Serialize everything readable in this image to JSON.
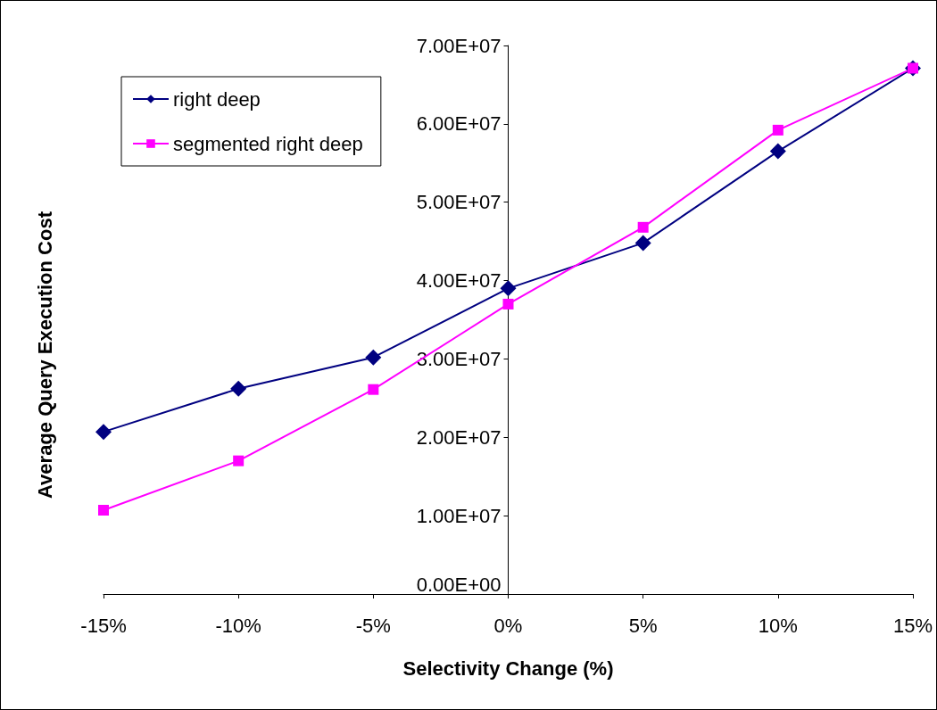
{
  "chart_data": {
    "type": "line",
    "xlabel": "Selectivity Change (%)",
    "ylabel": "Average Query Execution Cost",
    "x": [
      -15,
      -10,
      -5,
      0,
      5,
      10,
      15
    ],
    "series": [
      {
        "name": "right deep",
        "color": "#000080",
        "marker": "diamond",
        "values": [
          20700000,
          26200000,
          30200000,
          39000000,
          44800000,
          56500000,
          67100000
        ]
      },
      {
        "name": "segmented right deep",
        "color": "#ff00ff",
        "marker": "square",
        "values": [
          10700000,
          17000000,
          26100000,
          37000000,
          46800000,
          59200000,
          67100000
        ]
      }
    ],
    "xlim": [
      -15,
      15
    ],
    "xticks": [
      {
        "value": -15,
        "label": "-15%"
      },
      {
        "value": -10,
        "label": "-10%"
      },
      {
        "value": -5,
        "label": "-5%"
      },
      {
        "value": 0,
        "label": "0%"
      },
      {
        "value": 5,
        "label": "5%"
      },
      {
        "value": 10,
        "label": "10%"
      },
      {
        "value": 15,
        "label": "15%"
      }
    ],
    "ylim": [
      0,
      70000000
    ],
    "yticks": [
      {
        "value": 0,
        "label": "0.00E+00"
      },
      {
        "value": 10000000,
        "label": "1.00E+07"
      },
      {
        "value": 20000000,
        "label": "2.00E+07"
      },
      {
        "value": 30000000,
        "label": "3.00E+07"
      },
      {
        "value": 40000000,
        "label": "4.00E+07"
      },
      {
        "value": 50000000,
        "label": "5.00E+07"
      },
      {
        "value": 60000000,
        "label": "6.00E+07"
      },
      {
        "value": 70000000,
        "label": "7.00E+07"
      }
    ],
    "grid": false,
    "legend": "top left",
    "line_style": "solid"
  }
}
